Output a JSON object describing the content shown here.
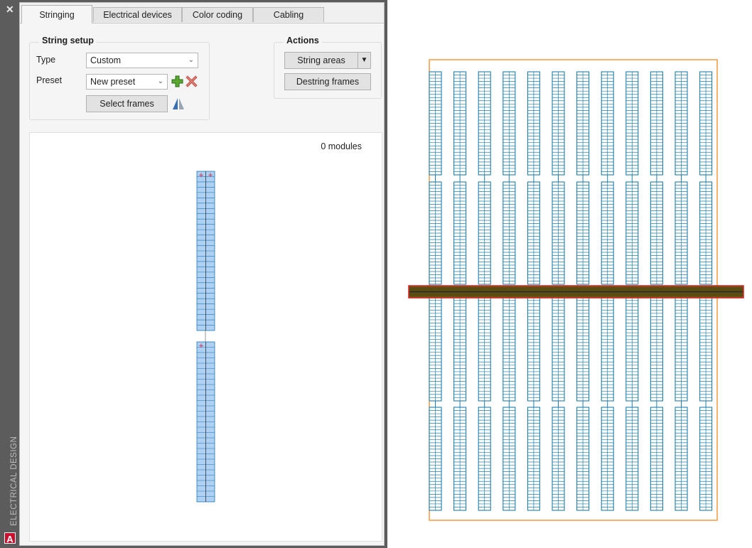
{
  "side_panel": {
    "title": "ELECTRICAL DESIGN",
    "close_symbol": "✕",
    "logo_letter": "A"
  },
  "tabs": [
    {
      "label": "Stringing",
      "active": true
    },
    {
      "label": "Electrical devices",
      "active": false
    },
    {
      "label": "Color coding",
      "active": false
    },
    {
      "label": "Cabling",
      "active": false
    }
  ],
  "string_setup": {
    "title": "String setup",
    "type_label": "Type",
    "type_value": "Custom",
    "preset_label": "Preset",
    "preset_value": "New preset",
    "add_preset_icon": "green-plus-icon",
    "delete_preset_icon": "red-x-icon",
    "select_frames_label": "Select frames",
    "flip_icon": "mirror-triangles-icon"
  },
  "actions": {
    "title": "Actions",
    "string_areas_label": "String areas",
    "destring_frames_label": "Destring frames"
  },
  "preview": {
    "module_count": "0 modules"
  },
  "colors": {
    "panel_bg": "#5c5c5c",
    "module_fill": "#aed0f2",
    "module_stroke": "#1f77b4",
    "layout_module": "#1f7fa8",
    "boundary": "#f08a24",
    "road": "#d81e1e"
  }
}
